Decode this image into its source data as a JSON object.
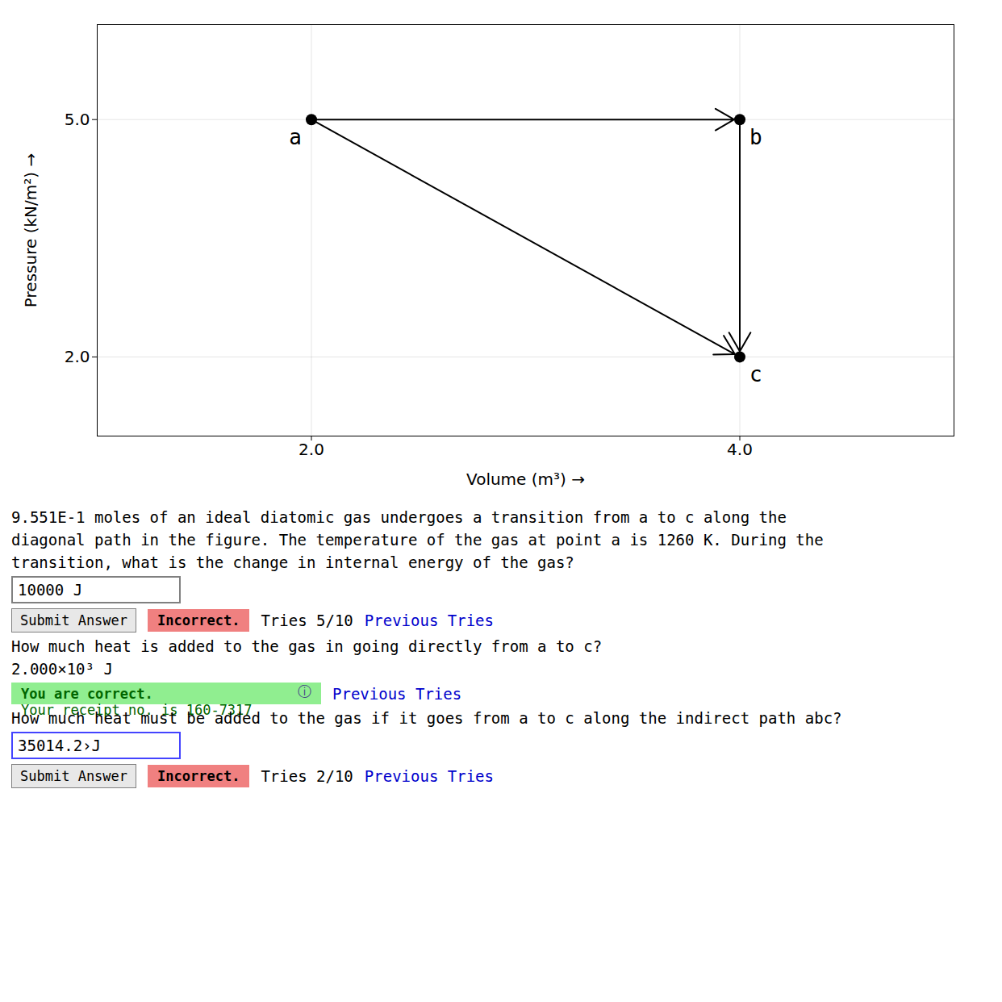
{
  "chart_data": {
    "type": "scatter",
    "x_label": "Volume (m³)",
    "y_label": "Pressure (kN/m²)",
    "x": [
      2.0,
      4.0,
      4.0
    ],
    "values": [
      5.0,
      5.0,
      2.0
    ],
    "point_labels": [
      "a",
      "b",
      "c"
    ],
    "arrows": [
      [
        "a",
        "c"
      ],
      [
        "a",
        "b"
      ],
      [
        "b",
        "c"
      ]
    ],
    "color": "#000000",
    "marker": "circle",
    "xlim": [
      1.0,
      5.0
    ],
    "ylim": [
      1.0,
      6.2
    ],
    "xticks": [
      {
        "value": 2.0,
        "label": "2.0"
      },
      {
        "value": 4.0,
        "label": "4.0"
      }
    ],
    "yticks": [
      {
        "value": 2.0,
        "label": "2.0"
      },
      {
        "value": 5.0,
        "label": "5.0"
      }
    ],
    "grid": true,
    "annotations": [
      [
        {
          "type": "text",
          "text": "9.551E-1 moles of an ideal diatomic gas undergoes a transition from a to c along the",
          "color": "#000000"
        }
      ],
      [
        {
          "type": "text",
          "text": "diagonal path in the figure. The temperature of the gas at point a is 1260 K. During the",
          "color": "#000000"
        }
      ],
      [
        {
          "type": "text",
          "text": "transition, what is the change in internal energy of the gas?",
          "color": "#000000"
        }
      ],
      [
        {
          "type": "input",
          "text": "10000 J",
          "color": "gray"
        }
      ],
      [
        {
          "type": "button",
          "text": "Submit Answer",
          "color": "#e8e8e8"
        },
        {
          "type": "box",
          "text": "Incorrect.",
          "color": "#f08080"
        },
        {
          "type": "text",
          "text": "Tries 5/10"
        },
        {
          "type": "text",
          "text": "Previous Tries",
          "color": "#0000cc"
        }
      ],
      [
        {
          "type": "text",
          "text": "How much heat is added to the gas in going directly from a to c?"
        }
      ],
      [
        {
          "type": "text",
          "text": "2.000×10³ J"
        }
      ],
      [
        {
          "type": "box",
          "color": "#90ee90",
          "items": [
            {
              "type": "text",
              "text": "You are correct.",
              "color": "#006600"
            },
            {
              "type": "text",
              "text": "Your receipt no. is 160-7317",
              "color": "#006600"
            },
            {
              "type": "text",
              "text": "ⓘ",
              "color": "#444488"
            }
          ]
        },
        {
          "type": "text",
          "text": "Previous Tries",
          "color": "#0000cc"
        }
      ],
      [
        {
          "type": "text",
          "text": "How much heat must be added to the gas if it goes from a to c along the indirect path abc?"
        }
      ],
      [
        {
          "type": "input",
          "text": "35014.2›J",
          "color": "#4444ff"
        }
      ],
      [
        {
          "type": "button",
          "text": "Submit Answer",
          "color": "#e8e8e8"
        },
        {
          "type": "box",
          "text": "Incorrect.",
          "color": "#f08080"
        },
        {
          "type": "text",
          "text": "Tries 2/10"
        },
        {
          "type": "text",
          "text": "Previous Tries",
          "color": "#0000cc"
        }
      ]
    ]
  }
}
